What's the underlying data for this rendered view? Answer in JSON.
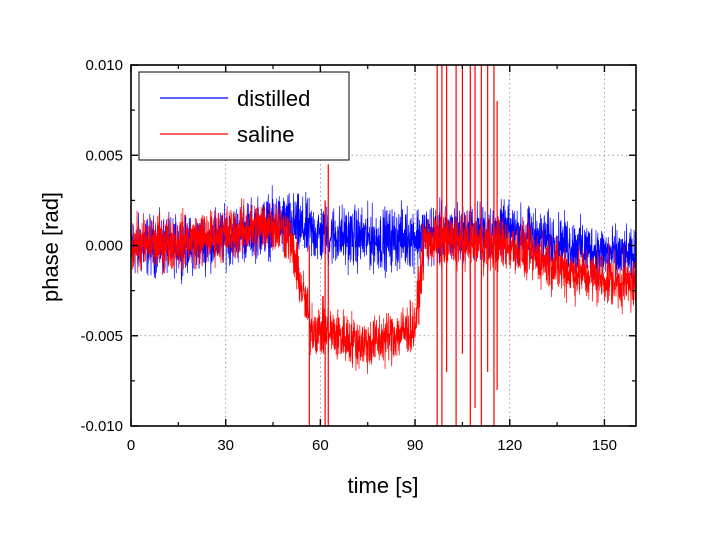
{
  "chart_data": {
    "type": "line",
    "title": "",
    "xlabel": "time [s]",
    "ylabel": "phase [rad]",
    "xlim": [
      0,
      160
    ],
    "ylim": [
      -0.01,
      0.01
    ],
    "x_ticks": [
      0,
      30,
      60,
      90,
      120,
      150
    ],
    "x_tick_labels": [
      "0",
      "30",
      "60",
      "90",
      "120",
      "150"
    ],
    "y_ticks": [
      -0.01,
      -0.005,
      0.0,
      0.005,
      0.01
    ],
    "y_tick_labels": [
      "-0.010",
      "-0.005",
      "0.000",
      "0.005",
      "0.010"
    ],
    "grid": true,
    "legend_position": "top-left",
    "series": [
      {
        "name": "distilled",
        "color": "#0000ff",
        "envelope": [
          {
            "x": 0,
            "mean": 0.0,
            "spread": 0.0025
          },
          {
            "x": 20,
            "mean": 0.0,
            "spread": 0.0022
          },
          {
            "x": 45,
            "mean": 0.0012,
            "spread": 0.0025
          },
          {
            "x": 50,
            "mean": 0.0012,
            "spread": 0.0025
          },
          {
            "x": 60,
            "mean": 0.0006,
            "spread": 0.0025
          },
          {
            "x": 80,
            "mean": 0.0003,
            "spread": 0.0025
          },
          {
            "x": 93,
            "mean": 0.0006,
            "spread": 0.0025
          },
          {
            "x": 120,
            "mean": 0.0008,
            "spread": 0.0022
          },
          {
            "x": 140,
            "mean": 0.0,
            "spread": 0.0022
          },
          {
            "x": 160,
            "mean": -0.0008,
            "spread": 0.0022
          }
        ]
      },
      {
        "name": "saline",
        "color": "#ff0000",
        "envelope": [
          {
            "x": 0,
            "mean": 0.0,
            "spread": 0.0023
          },
          {
            "x": 20,
            "mean": 0.0003,
            "spread": 0.0022
          },
          {
            "x": 45,
            "mean": 0.0012,
            "spread": 0.0022
          },
          {
            "x": 50,
            "mean": 0.0006,
            "spread": 0.0022
          },
          {
            "x": 57,
            "mean": -0.0045,
            "spread": 0.0022
          },
          {
            "x": 75,
            "mean": -0.0055,
            "spread": 0.0022
          },
          {
            "x": 90,
            "mean": -0.0045,
            "spread": 0.0022
          },
          {
            "x": 93,
            "mean": 0.0003,
            "spread": 0.0022
          },
          {
            "x": 120,
            "mean": 0.0,
            "spread": 0.0022
          },
          {
            "x": 140,
            "mean": -0.0015,
            "spread": 0.0022
          },
          {
            "x": 160,
            "mean": -0.0022,
            "spread": 0.0022
          }
        ],
        "spikes": [
          {
            "x": 56.5,
            "low": -0.01,
            "high": 0.0
          },
          {
            "x": 61.5,
            "low": -0.01,
            "high": 0.0025
          },
          {
            "x": 62.5,
            "low": -0.01,
            "high": 0.0045
          },
          {
            "x": 97,
            "low": -0.01,
            "high": 0.01
          },
          {
            "x": 98.5,
            "low": -0.01,
            "high": 0.01
          },
          {
            "x": 100,
            "low": -0.007,
            "high": 0.01
          },
          {
            "x": 103,
            "low": -0.01,
            "high": 0.01
          },
          {
            "x": 105,
            "low": -0.006,
            "high": 0.01
          },
          {
            "x": 107.5,
            "low": -0.01,
            "high": 0.01
          },
          {
            "x": 109,
            "low": -0.009,
            "high": 0.01
          },
          {
            "x": 111,
            "low": -0.01,
            "high": 0.01
          },
          {
            "x": 113,
            "low": -0.007,
            "high": 0.01
          },
          {
            "x": 115,
            "low": -0.01,
            "high": 0.01
          },
          {
            "x": 116,
            "low": -0.008,
            "high": 0.008
          }
        ]
      }
    ]
  }
}
